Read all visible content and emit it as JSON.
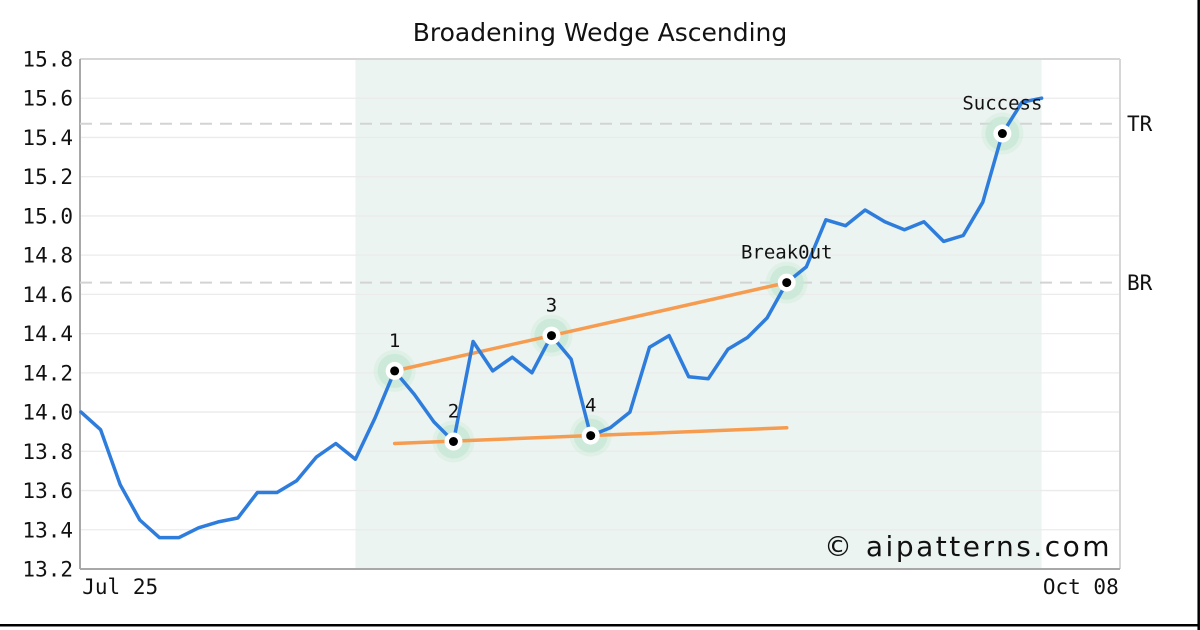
{
  "chart_data": {
    "type": "line",
    "title": "Broadening Wedge Ascending",
    "watermark": "© aipatterns.com",
    "x_axis": {
      "tick_labels": [
        "Jul 25",
        "Oct 08"
      ],
      "tick_indices": [
        2,
        51
      ],
      "xlim_indices": [
        -0.05,
        53.0
      ]
    },
    "y_axis": {
      "ylim": [
        13.2,
        15.8
      ],
      "tick_step": 0.2,
      "tick_labels": [
        "15.8",
        "15.6",
        "15.4",
        "15.2",
        "15.0",
        "14.8",
        "14.6",
        "14.4",
        "14.2",
        "14.0",
        "13.8",
        "13.6",
        "13.4",
        "13.2"
      ],
      "grid": true
    },
    "series": [
      {
        "name": "price",
        "values": [
          14.0,
          13.91,
          13.63,
          13.45,
          13.36,
          13.36,
          13.41,
          13.44,
          13.46,
          13.59,
          13.59,
          13.65,
          13.77,
          13.84,
          13.76,
          13.97,
          14.21,
          14.09,
          13.95,
          13.85,
          14.36,
          14.21,
          14.28,
          14.2,
          14.39,
          14.27,
          13.88,
          13.92,
          14.0,
          14.33,
          14.39,
          14.18,
          14.17,
          14.32,
          14.38,
          14.48,
          14.66,
          14.74,
          14.98,
          14.95,
          15.03,
          14.97,
          14.93,
          14.97,
          14.87,
          14.9,
          15.07,
          15.42,
          15.58,
          15.6
        ]
      }
    ],
    "pattern_points": [
      {
        "label": "1",
        "index": 16,
        "value": 14.21
      },
      {
        "label": "2",
        "index": 19,
        "value": 13.85
      },
      {
        "label": "3",
        "index": 24,
        "value": 14.39
      },
      {
        "label": "4",
        "index": 26,
        "value": 13.88
      },
      {
        "label": "Break0ut",
        "index": 36,
        "value": 14.66
      },
      {
        "label": "Success",
        "index": 47,
        "value": 15.42
      }
    ],
    "trendlines": [
      {
        "name": "upper",
        "from": {
          "index": 16,
          "value": 14.21
        },
        "to": {
          "index": 36,
          "value": 14.66
        }
      },
      {
        "name": "lower",
        "from": {
          "index": 16,
          "value": 13.84
        },
        "to": {
          "index": 36,
          "value": 13.92
        }
      }
    ],
    "hlines": [
      {
        "label": "TR",
        "value": 15.47
      },
      {
        "label": "BR",
        "value": 14.66
      }
    ],
    "shade": {
      "from_index": 14,
      "to_index": 49
    },
    "colors": {
      "line": "#2e7ddd",
      "trend": "#f69c50",
      "shade": "#ebf4f0",
      "halo": "#c9e8d6",
      "grid": "#ebebeb",
      "dashed": "#d3d3d3",
      "spine_dark": "#a8a8a8",
      "spine_light": "#d6d6d6",
      "watermark": "#c1c5f0",
      "text": "#111111",
      "edge": "#000000"
    }
  }
}
